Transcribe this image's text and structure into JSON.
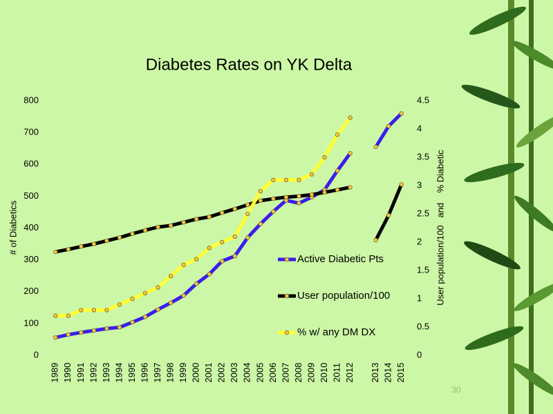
{
  "chart_data": {
    "type": "line",
    "title": "Diabetes Rates on YK Delta",
    "y_label": "# of Diabetics",
    "y2_label": "User population/100   and    % Diabetic",
    "categories": [
      "1989",
      "1990",
      "1991",
      "1992",
      "1993",
      "1994",
      "1995",
      "1996",
      "1997",
      "1998",
      "1999",
      "2000",
      "2001",
      "2002",
      "2003",
      "2004",
      "2005",
      "2006",
      "2007",
      "2008",
      "2009",
      "2010",
      "2011",
      "2012",
      null,
      "2013",
      "2014",
      "2015"
    ],
    "series": [
      {
        "name": "Active Diabetic Pts",
        "color": "#3b1ee8",
        "axis": "y",
        "values": [
          56,
          65,
          72,
          78,
          84,
          88,
          104,
          121,
          144,
          165,
          188,
          225,
          255,
          296,
          312,
          370,
          413,
          452,
          487,
          478,
          497,
          520,
          580,
          635,
          null,
          655,
          720,
          760
        ]
      },
      {
        "name": "User population/100",
        "color": "#000000",
        "axis": "y",
        "values": [
          325,
          333,
          342,
          350,
          360,
          370,
          382,
          393,
          403,
          408,
          418,
          428,
          435,
          448,
          460,
          473,
          486,
          492,
          497,
          500,
          505,
          512,
          520,
          528,
          null,
          362,
          440,
          537
        ]
      },
      {
        "name": "% w/ any DM DX",
        "color": "#ffff33",
        "axis": "y2",
        "values": [
          0.7,
          0.7,
          0.8,
          0.8,
          0.8,
          0.9,
          1.0,
          1.1,
          1.2,
          1.4,
          1.6,
          1.7,
          1.9,
          2.0,
          2.1,
          2.5,
          2.9,
          3.1,
          3.1,
          3.1,
          3.2,
          3.5,
          3.9,
          4.2,
          null,
          null,
          null,
          null
        ]
      }
    ],
    "ylim": [
      0,
      800
    ],
    "yticks": [
      0,
      100,
      200,
      300,
      400,
      500,
      600,
      700,
      800
    ],
    "y2lim": [
      0,
      4.5
    ],
    "y2ticks": [
      0,
      0.5,
      1,
      1.5,
      2,
      2.5,
      3,
      3.5,
      4,
      4.5
    ],
    "grid": false,
    "legend": "right"
  },
  "slide_number": "30"
}
